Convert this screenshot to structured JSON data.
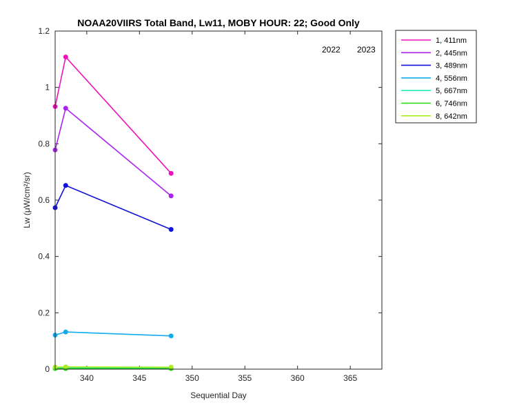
{
  "chart_data": {
    "type": "line",
    "title": "NOAA20VIIRS Total Band,  Lw11, MOBY HOUR: 22;  Good Only",
    "xlabel": "Sequential Day",
    "ylabel": "Lw (μW/cm²/sr)",
    "xlim": [
      337,
      368
    ],
    "ylim": [
      0,
      1.2
    ],
    "xticks": [
      340,
      345,
      350,
      355,
      360,
      365
    ],
    "yticks": [
      0,
      0.2,
      0.4,
      0.6,
      0.8,
      1,
      1.2
    ],
    "ytick_labels": [
      "0",
      "0.2",
      "0.4",
      "0.6",
      "0.8",
      "1",
      "1.2"
    ],
    "grid": false,
    "legend_position": "outside-top-right",
    "annotations": [
      "2022",
      "2023"
    ],
    "x": [
      337,
      338,
      348
    ],
    "series": [
      {
        "name": "1, 411nm",
        "color": "#ee11bb",
        "values": [
          0.932,
          1.108,
          0.695
        ]
      },
      {
        "name": "2, 445nm",
        "color": "#aa22ee",
        "values": [
          0.778,
          0.926,
          0.615
        ]
      },
      {
        "name": "3, 489nm",
        "color": "#1111dd",
        "values": [
          0.573,
          0.652,
          0.496
        ]
      },
      {
        "name": "4, 556nm",
        "color": "#11aaee",
        "values": [
          0.121,
          0.132,
          0.118
        ]
      },
      {
        "name": "5, 667nm",
        "color": "#22eebb",
        "values": [
          0.004,
          0.005,
          0.004
        ]
      },
      {
        "name": "6, 746nm",
        "color": "#22dd11",
        "values": [
          0.002,
          0.002,
          0.002
        ]
      },
      {
        "name": "8, 642nm",
        "color": "#aaee22",
        "values": [
          0.007,
          0.008,
          0.007
        ]
      }
    ]
  }
}
